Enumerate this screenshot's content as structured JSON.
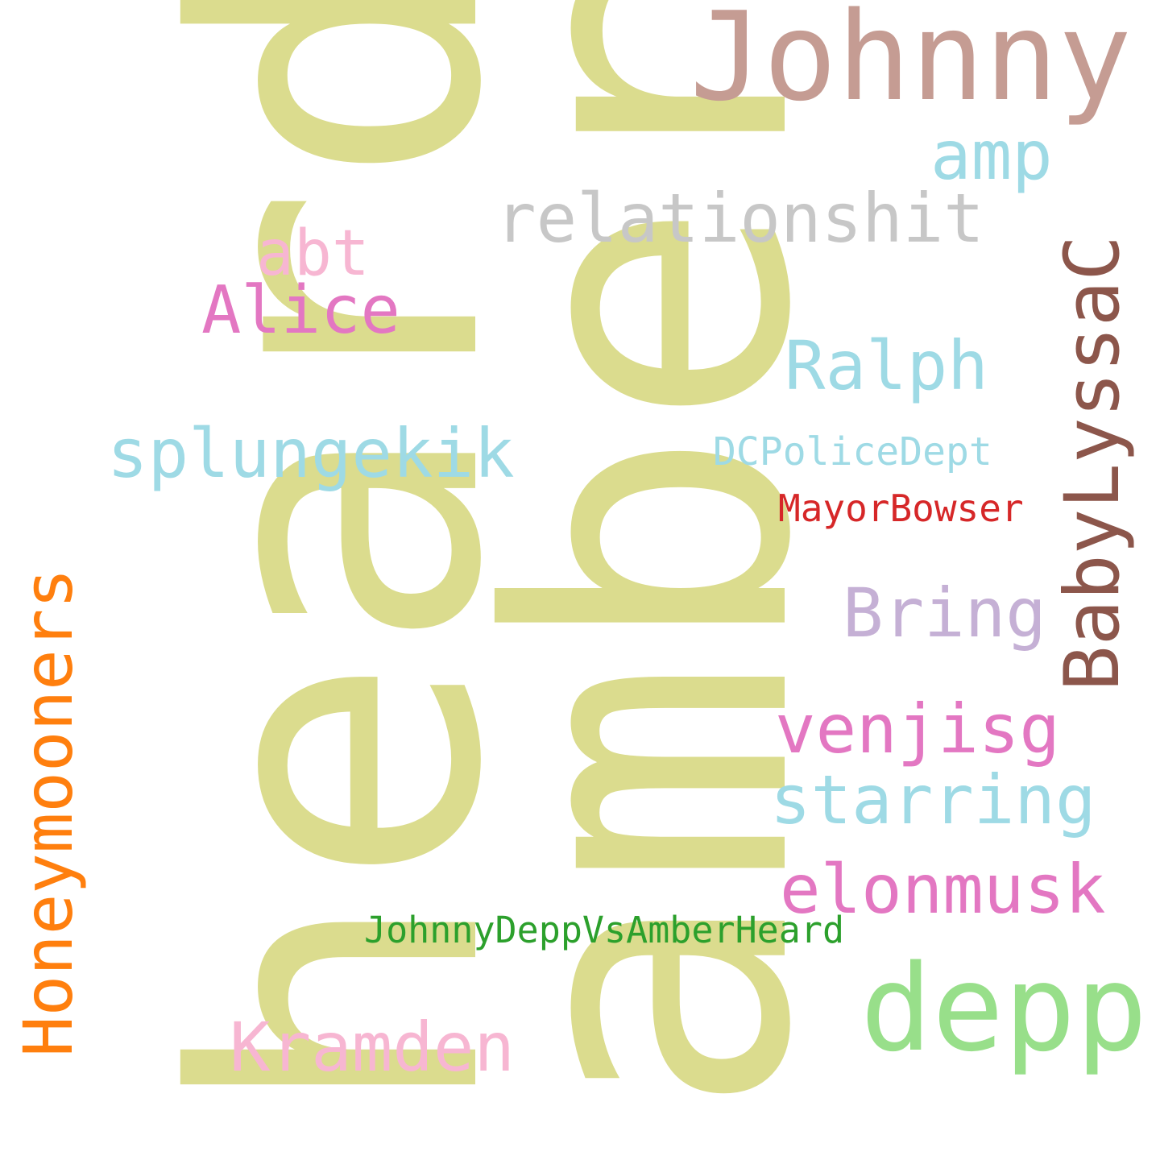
{
  "words": {
    "heard": {
      "text": "heard",
      "color": "#dbdc8e"
    },
    "amber": {
      "text": "amber",
      "color": "#dbdc8e"
    },
    "johnny": {
      "text": "Johnny",
      "color": "#c59c93"
    },
    "amp": {
      "text": "amp",
      "color": "#9edae5"
    },
    "relationshit": {
      "text": "relationshit",
      "color": "#c7c7c7"
    },
    "abt": {
      "text": "abt",
      "color": "#f7b6d2"
    },
    "alice": {
      "text": "Alice",
      "color": "#e377c2"
    },
    "ralph": {
      "text": "Ralph",
      "color": "#9edae5"
    },
    "babylyssac": {
      "text": "BabyLyssaC",
      "color": "#8c564b"
    },
    "splungekik": {
      "text": "splungekik",
      "color": "#9edae5"
    },
    "dcpolicedept": {
      "text": "DCPoliceDept",
      "color": "#9edae5"
    },
    "mayorbowser": {
      "text": "MayorBowser",
      "color": "#d62728"
    },
    "bring": {
      "text": "Bring",
      "color": "#c5b0d5"
    },
    "honeymooners": {
      "text": "Honeymooners",
      "color": "#ff7f0e"
    },
    "venjisg": {
      "text": "venjisg",
      "color": "#e377c2"
    },
    "starring": {
      "text": "starring",
      "color": "#9edae5"
    },
    "elonmusk": {
      "text": "elonmusk",
      "color": "#e377c2"
    },
    "johnnydeppvsamberheard": {
      "text": "JohnnyDeppVsAmberHeard",
      "color": "#2ca02c"
    },
    "depp": {
      "text": "depp",
      "color": "#98df8a"
    },
    "kramden": {
      "text": "Kramden",
      "color": "#f7b6d2"
    }
  }
}
